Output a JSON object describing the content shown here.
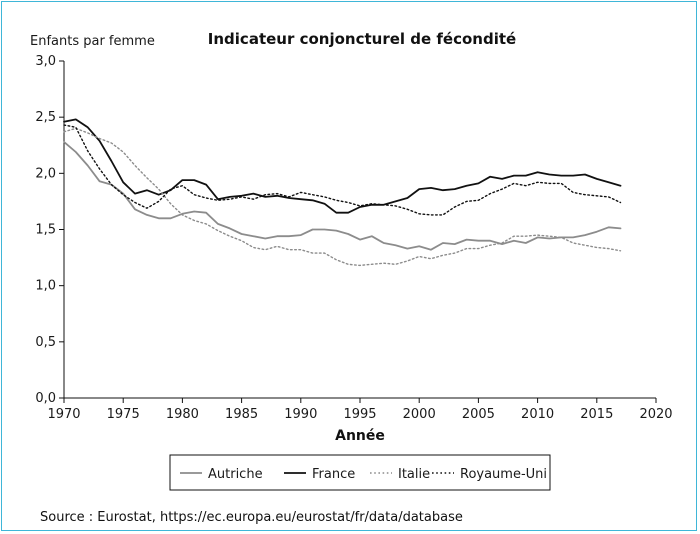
{
  "chart_data": {
    "type": "line",
    "title": "Indicateur conjoncturel de fécondité",
    "ylabel": "Enfants par femme",
    "xlabel": "Année",
    "xlim": [
      1970,
      2020
    ],
    "ylim": [
      0,
      3
    ],
    "x_ticks": [
      "1970",
      "1975",
      "1980",
      "1985",
      "1990",
      "1995",
      "2000",
      "2005",
      "2010",
      "2015",
      "2020"
    ],
    "y_ticks": [
      "0,0",
      "0,5",
      "1,0",
      "1,5",
      "2,0",
      "2,5",
      "3,0"
    ],
    "legend_position": "bottom",
    "grid": false,
    "years": [
      1970,
      1971,
      1972,
      1973,
      1974,
      1975,
      1976,
      1977,
      1978,
      1979,
      1980,
      1981,
      1982,
      1983,
      1984,
      1985,
      1986,
      1987,
      1988,
      1989,
      1990,
      1991,
      1992,
      1993,
      1994,
      1995,
      1996,
      1997,
      1998,
      1999,
      2000,
      2001,
      2002,
      2003,
      2004,
      2005,
      2006,
      2007,
      2008,
      2009,
      2010,
      2011,
      2012,
      2013,
      2014,
      2015,
      2016,
      2017
    ],
    "series": [
      {
        "name": "Autriche",
        "color": "#8c8c8c",
        "style": "solid",
        "values": [
          2.28,
          2.19,
          2.07,
          1.93,
          1.9,
          1.82,
          1.68,
          1.63,
          1.6,
          1.6,
          1.64,
          1.66,
          1.65,
          1.55,
          1.51,
          1.46,
          1.44,
          1.42,
          1.44,
          1.44,
          1.45,
          1.5,
          1.5,
          1.49,
          1.46,
          1.41,
          1.44,
          1.38,
          1.36,
          1.33,
          1.35,
          1.32,
          1.38,
          1.37,
          1.41,
          1.4,
          1.4,
          1.37,
          1.4,
          1.38,
          1.43,
          1.42,
          1.43,
          1.43,
          1.45,
          1.48,
          1.52,
          1.51
        ]
      },
      {
        "name": "France",
        "color": "#111111",
        "style": "solid",
        "values": [
          2.46,
          2.48,
          2.41,
          2.29,
          2.11,
          1.92,
          1.82,
          1.85,
          1.81,
          1.85,
          1.94,
          1.94,
          1.9,
          1.77,
          1.79,
          1.8,
          1.82,
          1.79,
          1.8,
          1.78,
          1.77,
          1.76,
          1.73,
          1.65,
          1.65,
          1.7,
          1.72,
          1.72,
          1.75,
          1.78,
          1.86,
          1.87,
          1.85,
          1.86,
          1.89,
          1.91,
          1.97,
          1.95,
          1.98,
          1.98,
          2.01,
          1.99,
          1.98,
          1.98,
          1.99,
          1.95,
          1.92,
          1.89
        ]
      },
      {
        "name": "Italie",
        "color": "#8c8c8c",
        "style": "dotted",
        "values": [
          2.37,
          2.4,
          2.36,
          2.31,
          2.27,
          2.19,
          2.07,
          1.96,
          1.86,
          1.73,
          1.63,
          1.58,
          1.55,
          1.49,
          1.44,
          1.4,
          1.34,
          1.32,
          1.35,
          1.32,
          1.32,
          1.29,
          1.29,
          1.23,
          1.19,
          1.18,
          1.19,
          1.2,
          1.19,
          1.22,
          1.26,
          1.24,
          1.27,
          1.29,
          1.33,
          1.33,
          1.36,
          1.38,
          1.44,
          1.44,
          1.45,
          1.44,
          1.43,
          1.38,
          1.36,
          1.34,
          1.33,
          1.31
        ]
      },
      {
        "name": "Royaume-Uni",
        "color": "#111111",
        "style": "dotted",
        "values": [
          2.43,
          2.41,
          2.2,
          2.04,
          1.9,
          1.81,
          1.74,
          1.69,
          1.75,
          1.86,
          1.89,
          1.81,
          1.78,
          1.76,
          1.77,
          1.79,
          1.77,
          1.81,
          1.82,
          1.79,
          1.83,
          1.81,
          1.79,
          1.76,
          1.74,
          1.71,
          1.73,
          1.72,
          1.71,
          1.68,
          1.64,
          1.63,
          1.63,
          1.7,
          1.75,
          1.76,
          1.82,
          1.86,
          1.91,
          1.89,
          1.92,
          1.91,
          1.91,
          1.83,
          1.81,
          1.8,
          1.79,
          1.74
        ]
      }
    ]
  },
  "source": "Source : Eurostat, https://ec.europa.eu/eurostat/fr/data/database"
}
